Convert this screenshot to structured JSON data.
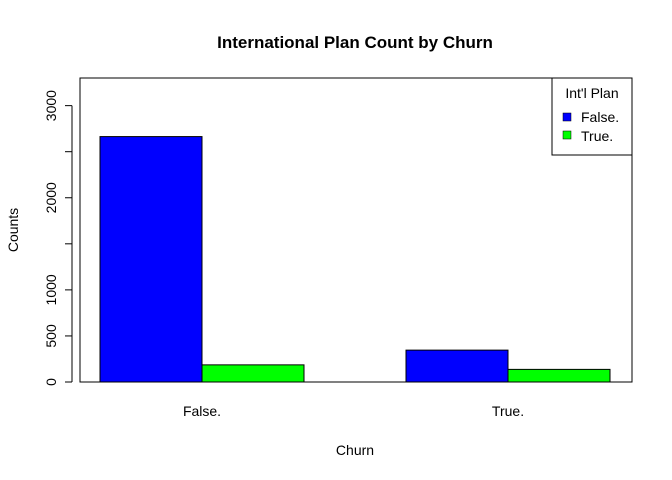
{
  "chart_data": {
    "type": "bar",
    "title": "International Plan Count by Churn",
    "xlabel": "Churn",
    "ylabel": "Counts",
    "categories": [
      "False.",
      "True."
    ],
    "series": [
      {
        "name": "False.",
        "color": "#0000FF",
        "values": [
          2664,
          346
        ]
      },
      {
        "name": "True.",
        "color": "#00FF00",
        "values": [
          186,
          137
        ]
      }
    ],
    "ylim": [
      0,
      3300
    ],
    "yticks": [
      "0",
      "500",
      "1000",
      "2000",
      "3000"
    ],
    "ytick_values": [
      0,
      500,
      1000,
      2000,
      3000
    ],
    "grid": false,
    "legend": {
      "title": "Int'l Plan",
      "position": "top-right"
    }
  }
}
